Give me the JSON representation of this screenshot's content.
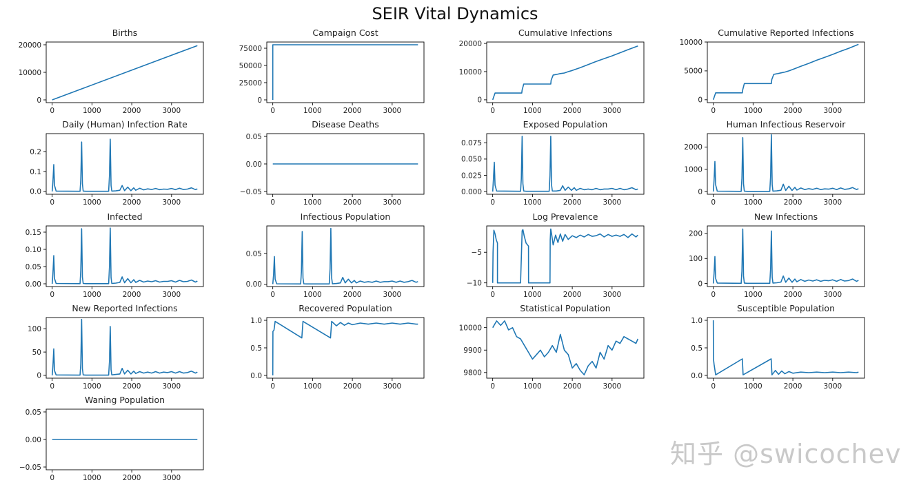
{
  "figure": {
    "title": "SEIR Vital Dynamics",
    "watermark": "知乎 @swicochev"
  },
  "colors": {
    "line": "#1f77b4",
    "axis": "#000000"
  },
  "chart_data": [
    {
      "type": "line",
      "title": "Births",
      "xlim": [
        -150,
        3800
      ],
      "ylim": [
        -1000,
        21000
      ],
      "xticks": [
        0,
        1000,
        2000,
        3000
      ],
      "yticks": [
        0,
        10000,
        20000
      ],
      "x": [
        0,
        3650
      ],
      "y": [
        0,
        19700
      ]
    },
    {
      "type": "line",
      "title": "Campaign Cost",
      "xlim": [
        -150,
        3800
      ],
      "ylim": [
        -4000,
        84000
      ],
      "xticks": [
        0,
        1000,
        2000,
        3000
      ],
      "yticks": [
        0,
        25000,
        50000,
        75000
      ],
      "x": [
        0,
        1,
        3650
      ],
      "y": [
        0,
        80000,
        80000
      ]
    },
    {
      "type": "line",
      "title": "Cumulative Infections",
      "xlim": [
        -150,
        3800
      ],
      "ylim": [
        -1000,
        20500
      ],
      "xticks": [
        0,
        1000,
        2000,
        3000
      ],
      "yticks": [
        0,
        10000,
        20000
      ],
      "x": [
        0,
        20,
        60,
        730,
        740,
        780,
        1460,
        1470,
        1520,
        1600,
        1700,
        1800,
        1900,
        2000,
        2200,
        2400,
        2600,
        2800,
        3000,
        3200,
        3400,
        3650
      ],
      "y": [
        0,
        800,
        2400,
        2400,
        3500,
        5600,
        5600,
        7000,
        8800,
        9000,
        9300,
        9500,
        10000,
        10400,
        11400,
        12500,
        13600,
        14600,
        15600,
        16700,
        17800,
        19100
      ]
    },
    {
      "type": "line",
      "title": "Cumulative Reported Infections",
      "xlim": [
        -150,
        3800
      ],
      "ylim": [
        -500,
        10000
      ],
      "xticks": [
        0,
        1000,
        2000,
        3000
      ],
      "yticks": [
        0,
        5000,
        10000
      ],
      "x": [
        0,
        20,
        60,
        730,
        740,
        780,
        1460,
        1470,
        1520,
        1600,
        1700,
        1800,
        1900,
        2000,
        2200,
        2400,
        2600,
        2800,
        3000,
        3200,
        3400,
        3650
      ],
      "y": [
        0,
        400,
        1200,
        1200,
        1750,
        2800,
        2800,
        3500,
        4400,
        4500,
        4650,
        4800,
        5000,
        5250,
        5800,
        6300,
        6850,
        7350,
        7850,
        8400,
        8900,
        9600
      ]
    },
    {
      "type": "line",
      "title": "Daily (Human) Infection Rate",
      "xlim": [
        -150,
        3800
      ],
      "ylim": [
        -0.014,
        0.29
      ],
      "xticks": [
        0,
        1000,
        2000,
        3000
      ],
      "yticks": [
        0.0,
        0.1,
        0.2
      ],
      "ytick_labels": [
        "0.0",
        "0.1",
        "0.2"
      ],
      "x": [
        0,
        20,
        40,
        60,
        100,
        700,
        720,
        740,
        760,
        780,
        850,
        1420,
        1440,
        1460,
        1480,
        1500,
        1600,
        1700,
        1760,
        1820,
        1900,
        1980,
        2050,
        2100,
        2200,
        2300,
        2400,
        2500,
        2600,
        2700,
        2800,
        2900,
        3000,
        3100,
        3200,
        3300,
        3400,
        3500,
        3600,
        3650
      ],
      "y": [
        0,
        0.05,
        0.135,
        0.03,
        0.002,
        0.001,
        0.06,
        0.248,
        0.04,
        0.002,
        0.001,
        0.001,
        0.08,
        0.262,
        0.03,
        0.002,
        0.003,
        0.006,
        0.03,
        0.004,
        0.022,
        0.004,
        0.018,
        0.006,
        0.016,
        0.008,
        0.013,
        0.01,
        0.015,
        0.009,
        0.012,
        0.011,
        0.015,
        0.009,
        0.016,
        0.01,
        0.012,
        0.018,
        0.009,
        0.013
      ]
    },
    {
      "type": "line",
      "title": "Disease Deaths",
      "xlim": [
        -150,
        3800
      ],
      "ylim": [
        -0.055,
        0.055
      ],
      "xticks": [
        0,
        1000,
        2000,
        3000
      ],
      "yticks": [
        -0.05,
        0.0,
        0.05
      ],
      "ytick_labels": [
        "−0.05",
        "0.00",
        "0.05"
      ],
      "x": [
        0,
        3650
      ],
      "y": [
        0,
        0
      ]
    },
    {
      "type": "line",
      "title": "Exposed Population",
      "xlim": [
        -150,
        3800
      ],
      "ylim": [
        -0.004,
        0.089
      ],
      "xticks": [
        0,
        1000,
        2000,
        3000
      ],
      "yticks": [
        0.0,
        0.025,
        0.05,
        0.075
      ],
      "ytick_labels": [
        "0.000",
        "0.025",
        "0.050",
        "0.075"
      ],
      "x": [
        0,
        20,
        40,
        60,
        100,
        700,
        720,
        740,
        760,
        780,
        850,
        1420,
        1440,
        1460,
        1480,
        1500,
        1600,
        1700,
        1760,
        1820,
        1900,
        1980,
        2050,
        2100,
        2200,
        2300,
        2400,
        2500,
        2600,
        2700,
        2800,
        2900,
        3000,
        3100,
        3200,
        3300,
        3400,
        3500,
        3600,
        3650
      ],
      "y": [
        0,
        0.02,
        0.045,
        0.01,
        0.001,
        0.0005,
        0.02,
        0.085,
        0.012,
        0.001,
        0.0005,
        0.0005,
        0.025,
        0.085,
        0.01,
        0.001,
        0.001,
        0.002,
        0.009,
        0.002,
        0.007,
        0.002,
        0.006,
        0.002,
        0.005,
        0.003,
        0.004,
        0.003,
        0.005,
        0.003,
        0.004,
        0.004,
        0.005,
        0.003,
        0.005,
        0.003,
        0.004,
        0.006,
        0.003,
        0.004
      ]
    },
    {
      "type": "line",
      "title": "Human Infectious Reservoir",
      "xlim": [
        -150,
        3800
      ],
      "ylim": [
        -120,
        2600
      ],
      "xticks": [
        0,
        1000,
        2000,
        3000
      ],
      "yticks": [
        0,
        1000,
        2000
      ],
      "x": [
        0,
        20,
        40,
        60,
        100,
        700,
        720,
        740,
        760,
        780,
        850,
        1420,
        1440,
        1460,
        1480,
        1500,
        1600,
        1700,
        1760,
        1820,
        1900,
        1980,
        2050,
        2100,
        2200,
        2300,
        2400,
        2500,
        2600,
        2700,
        2800,
        2900,
        3000,
        3100,
        3200,
        3300,
        3400,
        3500,
        3600,
        3650
      ],
      "y": [
        0,
        500,
        1350,
        300,
        20,
        10,
        600,
        2420,
        350,
        20,
        10,
        10,
        700,
        2550,
        300,
        20,
        30,
        60,
        330,
        50,
        240,
        50,
        190,
        70,
        160,
        90,
        130,
        100,
        150,
        90,
        120,
        110,
        150,
        90,
        160,
        100,
        120,
        180,
        90,
        130
      ]
    },
    {
      "type": "line",
      "title": "Infected",
      "xlim": [
        -150,
        3800
      ],
      "ylim": [
        -0.008,
        0.168
      ],
      "xticks": [
        0,
        1000,
        2000,
        3000
      ],
      "yticks": [
        0.0,
        0.05,
        0.1,
        0.15
      ],
      "ytick_labels": [
        "0.00",
        "0.05",
        "0.10",
        "0.15"
      ],
      "x": [
        0,
        20,
        40,
        60,
        100,
        700,
        720,
        740,
        760,
        780,
        850,
        1420,
        1440,
        1460,
        1480,
        1500,
        1600,
        1700,
        1760,
        1820,
        1900,
        1980,
        2050,
        2100,
        2200,
        2300,
        2400,
        2500,
        2600,
        2700,
        2800,
        2900,
        3000,
        3100,
        3200,
        3300,
        3400,
        3500,
        3600,
        3650
      ],
      "y": [
        0,
        0.03,
        0.082,
        0.015,
        0.001,
        0.0005,
        0.04,
        0.16,
        0.02,
        0.001,
        0.0005,
        0.0005,
        0.05,
        0.162,
        0.018,
        0.001,
        0.002,
        0.004,
        0.02,
        0.003,
        0.015,
        0.003,
        0.012,
        0.004,
        0.01,
        0.005,
        0.008,
        0.006,
        0.009,
        0.005,
        0.007,
        0.007,
        0.009,
        0.005,
        0.01,
        0.006,
        0.007,
        0.011,
        0.005,
        0.008
      ]
    },
    {
      "type": "line",
      "title": "Infectious Population",
      "xlim": [
        -150,
        3800
      ],
      "ylim": [
        -0.004,
        0.095
      ],
      "xticks": [
        0,
        1000,
        2000,
        3000
      ],
      "yticks": [
        0.0,
        0.05
      ],
      "ytick_labels": [
        "0.00",
        "0.05"
      ],
      "x": [
        0,
        20,
        40,
        60,
        100,
        700,
        720,
        740,
        760,
        780,
        850,
        1420,
        1440,
        1460,
        1480,
        1500,
        1600,
        1700,
        1760,
        1820,
        1900,
        1980,
        2050,
        2100,
        2200,
        2300,
        2400,
        2500,
        2600,
        2700,
        2800,
        2900,
        3000,
        3100,
        3200,
        3300,
        3400,
        3500,
        3600,
        3650
      ],
      "y": [
        0,
        0.015,
        0.045,
        0.008,
        0.0005,
        0.0003,
        0.02,
        0.086,
        0.01,
        0.0005,
        0.0003,
        0.0003,
        0.025,
        0.091,
        0.01,
        0.0005,
        0.001,
        0.002,
        0.011,
        0.002,
        0.008,
        0.002,
        0.006,
        0.002,
        0.005,
        0.003,
        0.004,
        0.003,
        0.005,
        0.003,
        0.004,
        0.004,
        0.005,
        0.003,
        0.005,
        0.003,
        0.004,
        0.006,
        0.003,
        0.004
      ]
    },
    {
      "type": "line",
      "title": "Log Prevalence",
      "xlim": [
        -150,
        3800
      ],
      "ylim": [
        -10.6,
        -0.7
      ],
      "xticks": [
        0,
        1000,
        2000,
        3000
      ],
      "yticks": [
        -10,
        -5
      ],
      "ytick_labels": [
        "−10",
        "−5"
      ],
      "x": [
        0,
        10,
        30,
        60,
        90,
        120,
        121,
        700,
        740,
        760,
        790,
        840,
        900,
        901,
        1440,
        1445,
        1460,
        1480,
        1520,
        1580,
        1640,
        1700,
        1760,
        1820,
        1900,
        2000,
        2100,
        2200,
        2300,
        2400,
        2500,
        2600,
        2700,
        2800,
        2900,
        3000,
        3100,
        3200,
        3300,
        3400,
        3500,
        3600,
        3650
      ],
      "y": [
        -10,
        -5,
        -1.4,
        -2,
        -3,
        -3.5,
        -10,
        -10,
        -1.5,
        -1.3,
        -2.3,
        -3.5,
        -4,
        -10,
        -10,
        -3,
        -1.2,
        -2,
        -3.8,
        -2.2,
        -3.4,
        -2,
        -3.2,
        -2.1,
        -2.9,
        -2.3,
        -2.6,
        -2.2,
        -2.5,
        -2.1,
        -2.4,
        -2.3,
        -2,
        -2.5,
        -2.1,
        -2.4,
        -2.2,
        -2.4,
        -2.1,
        -2.6,
        -2,
        -2.5,
        -2.2
      ]
    },
    {
      "type": "line",
      "title": "New Infections",
      "xlim": [
        -150,
        3800
      ],
      "ylim": [
        -12,
        230
      ],
      "xticks": [
        0,
        1000,
        2000,
        3000
      ],
      "yticks": [
        0,
        100,
        200
      ],
      "x": [
        0,
        20,
        40,
        60,
        100,
        700,
        720,
        740,
        760,
        780,
        850,
        1420,
        1440,
        1460,
        1480,
        1500,
        1600,
        1700,
        1760,
        1820,
        1900,
        1980,
        2050,
        2100,
        2200,
        2300,
        2400,
        2500,
        2600,
        2700,
        2800,
        2900,
        3000,
        3100,
        3200,
        3300,
        3400,
        3500,
        3600,
        3650
      ],
      "y": [
        0,
        40,
        108,
        20,
        2,
        1,
        50,
        218,
        30,
        2,
        1,
        1,
        60,
        210,
        25,
        2,
        3,
        6,
        30,
        5,
        22,
        5,
        18,
        7,
        16,
        9,
        14,
        10,
        15,
        9,
        13,
        11,
        15,
        9,
        16,
        10,
        12,
        18,
        9,
        13
      ]
    },
    {
      "type": "line",
      "title": "New Reported Infections",
      "xlim": [
        -150,
        3800
      ],
      "ylim": [
        -6,
        124
      ],
      "xticks": [
        0,
        1000,
        2000,
        3000
      ],
      "yticks": [
        0,
        50,
        100
      ],
      "x": [
        0,
        20,
        40,
        60,
        100,
        700,
        720,
        740,
        760,
        780,
        850,
        1420,
        1440,
        1460,
        1480,
        1500,
        1600,
        1700,
        1760,
        1820,
        1900,
        1980,
        2050,
        2100,
        2200,
        2300,
        2400,
        2500,
        2600,
        2700,
        2800,
        2900,
        3000,
        3100,
        3200,
        3300,
        3400,
        3500,
        3600,
        3650
      ],
      "y": [
        0,
        20,
        57,
        10,
        1,
        0.5,
        25,
        120,
        15,
        1,
        0.5,
        0.5,
        30,
        105,
        12,
        1,
        2,
        3,
        15,
        3,
        11,
        3,
        9,
        4,
        8,
        5,
        7,
        5,
        8,
        5,
        7,
        6,
        8,
        5,
        8,
        5,
        6,
        9,
        5,
        7
      ]
    },
    {
      "type": "line",
      "title": "Recovered Population",
      "xlim": [
        -150,
        3800
      ],
      "ylim": [
        -0.05,
        1.05
      ],
      "xticks": [
        0,
        1000,
        2000,
        3000
      ],
      "yticks": [
        0.0,
        0.5,
        1.0
      ],
      "ytick_labels": [
        "0.0",
        "0.5",
        "1.0"
      ],
      "x": [
        0,
        5,
        30,
        60,
        730,
        760,
        1450,
        1480,
        1600,
        1700,
        1800,
        1900,
        2000,
        2200,
        2400,
        2600,
        2800,
        3000,
        3200,
        3400,
        3600,
        3650
      ],
      "y": [
        0,
        0.8,
        0.82,
        0.98,
        0.68,
        0.98,
        0.68,
        0.98,
        0.9,
        0.96,
        0.91,
        0.95,
        0.92,
        0.95,
        0.93,
        0.95,
        0.93,
        0.95,
        0.93,
        0.95,
        0.93,
        0.93
      ]
    },
    {
      "type": "line",
      "title": "Statistical Population",
      "xlim": [
        -150,
        3800
      ],
      "ylim": [
        9775,
        10045
      ],
      "xticks": [
        0,
        1000,
        2000,
        3000
      ],
      "yticks": [
        9800,
        9900,
        10000
      ],
      "x": [
        0,
        100,
        200,
        300,
        400,
        500,
        600,
        700,
        800,
        900,
        1000,
        1100,
        1200,
        1300,
        1400,
        1500,
        1600,
        1700,
        1800,
        1900,
        2000,
        2100,
        2200,
        2300,
        2400,
        2500,
        2600,
        2700,
        2800,
        2900,
        3000,
        3100,
        3200,
        3300,
        3400,
        3500,
        3600,
        3650
      ],
      "y": [
        10000,
        10030,
        10010,
        10030,
        9990,
        10000,
        9960,
        9950,
        9920,
        9890,
        9860,
        9880,
        9900,
        9870,
        9890,
        9920,
        9890,
        9970,
        9900,
        9880,
        9820,
        9840,
        9810,
        9790,
        9830,
        9850,
        9820,
        9890,
        9860,
        9920,
        9900,
        9940,
        9930,
        9960,
        9950,
        9940,
        9930,
        9950
      ]
    },
    {
      "type": "line",
      "title": "Susceptible Population",
      "xlim": [
        -150,
        3800
      ],
      "ylim": [
        -0.05,
        1.05
      ],
      "xticks": [
        0,
        1000,
        2000,
        3000
      ],
      "yticks": [
        0.0,
        0.5,
        1.0
      ],
      "ytick_labels": [
        "0.0",
        "0.5",
        "1.0"
      ],
      "x": [
        0,
        5,
        20,
        60,
        730,
        750,
        1455,
        1475,
        1560,
        1640,
        1720,
        1800,
        1900,
        2000,
        2200,
        2400,
        2600,
        2800,
        3000,
        3200,
        3400,
        3600,
        3650
      ],
      "y": [
        1,
        0.3,
        0.2,
        0.01,
        0.3,
        0.01,
        0.3,
        0.01,
        0.09,
        0.02,
        0.08,
        0.03,
        0.07,
        0.04,
        0.06,
        0.05,
        0.06,
        0.05,
        0.06,
        0.05,
        0.06,
        0.05,
        0.06
      ]
    },
    {
      "type": "line",
      "title": "Waning Population",
      "xlim": [
        -150,
        3800
      ],
      "ylim": [
        -0.055,
        0.055
      ],
      "xticks": [
        0,
        1000,
        2000,
        3000
      ],
      "yticks": [
        -0.05,
        0.0,
        0.05
      ],
      "ytick_labels": [
        "−0.05",
        "0.00",
        "0.05"
      ],
      "x": [
        0,
        3650
      ],
      "y": [
        0,
        0
      ]
    }
  ]
}
